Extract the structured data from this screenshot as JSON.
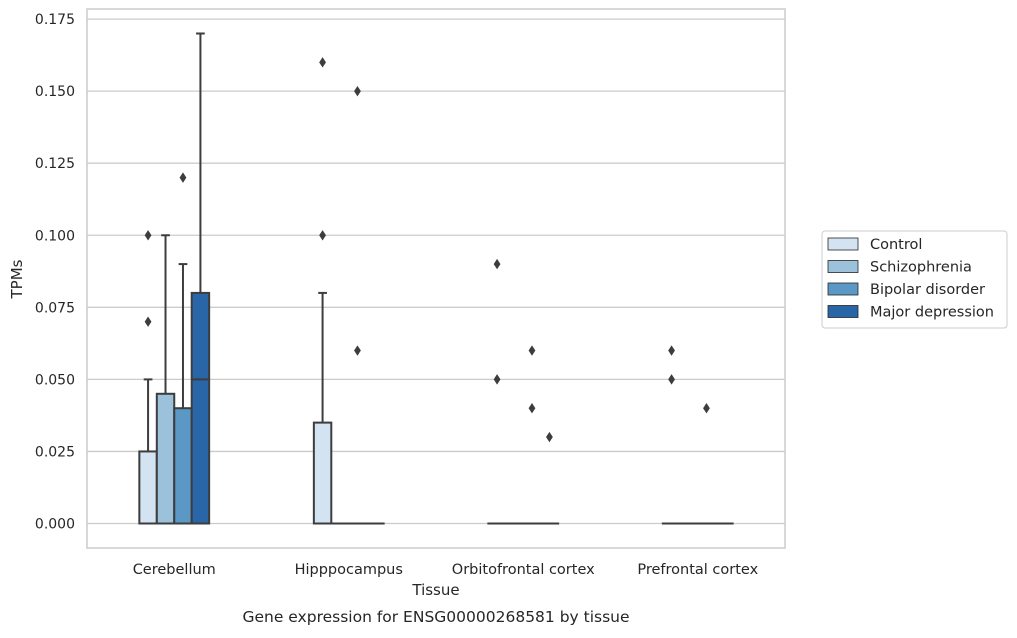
{
  "chart_data": {
    "type": "box",
    "title": "",
    "caption": "Gene expression for ENSG00000268581 by tissue",
    "xlabel": "Tissue",
    "ylabel": "TPMs",
    "ylim": [
      -0.0085,
      0.1785
    ],
    "yticks": [
      0.0,
      0.025,
      0.05,
      0.075,
      0.1,
      0.125,
      0.15,
      0.175
    ],
    "ytick_labels": [
      "0.000",
      "0.025",
      "0.050",
      "0.075",
      "0.100",
      "0.125",
      "0.150",
      "0.175"
    ],
    "categories": [
      "Cerebellum",
      "Hipppocampus",
      "Orbitofrontal cortex",
      "Prefrontal cortex"
    ],
    "grid": true,
    "legend_position": "right",
    "series": [
      {
        "name": "Control",
        "color": "#d4e3f2",
        "boxes": [
          {
            "min": 0.0,
            "q1": 0.0,
            "median": 0.0,
            "q3": 0.025,
            "max": 0.05,
            "outliers": [
              0.07,
              0.1
            ]
          },
          {
            "min": 0.0,
            "q1": 0.0,
            "median": 0.0,
            "q3": 0.035,
            "max": 0.08,
            "outliers": [
              0.1,
              0.16
            ]
          },
          {
            "min": 0.0,
            "q1": 0.0,
            "median": 0.0,
            "q3": 0.0,
            "max": 0.0,
            "outliers": [
              0.05,
              0.09
            ]
          },
          {
            "min": 0.0,
            "q1": 0.0,
            "median": 0.0,
            "q3": 0.0,
            "max": 0.0,
            "outliers": [
              0.05,
              0.06
            ]
          }
        ]
      },
      {
        "name": "Schizophrenia",
        "color": "#9bc1db",
        "boxes": [
          {
            "min": 0.0,
            "q1": 0.0,
            "median": 0.0,
            "q3": 0.045,
            "max": 0.1,
            "outliers": []
          },
          {
            "min": 0.0,
            "q1": 0.0,
            "median": 0.0,
            "q3": 0.0,
            "max": 0.0,
            "outliers": []
          },
          {
            "min": 0.0,
            "q1": 0.0,
            "median": 0.0,
            "q3": 0.0,
            "max": 0.0,
            "outliers": []
          },
          {
            "min": 0.0,
            "q1": 0.0,
            "median": 0.0,
            "q3": 0.0,
            "max": 0.0,
            "outliers": []
          }
        ]
      },
      {
        "name": "Bipolar disorder",
        "color": "#5b98c6",
        "boxes": [
          {
            "min": 0.0,
            "q1": 0.0,
            "median": 0.0,
            "q3": 0.04,
            "max": 0.09,
            "outliers": [
              0.12
            ]
          },
          {
            "min": 0.0,
            "q1": 0.0,
            "median": 0.0,
            "q3": 0.0,
            "max": 0.0,
            "outliers": [
              0.06,
              0.15
            ]
          },
          {
            "min": 0.0,
            "q1": 0.0,
            "median": 0.0,
            "q3": 0.0,
            "max": 0.0,
            "outliers": [
              0.04,
              0.06
            ]
          },
          {
            "min": 0.0,
            "q1": 0.0,
            "median": 0.0,
            "q3": 0.0,
            "max": 0.0,
            "outliers": [
              0.04
            ]
          }
        ]
      },
      {
        "name": "Major depression",
        "color": "#2866a8",
        "boxes": [
          {
            "min": 0.0,
            "q1": 0.0,
            "median": 0.05,
            "q3": 0.08,
            "max": 0.17,
            "outliers": []
          },
          {
            "min": 0.0,
            "q1": 0.0,
            "median": 0.0,
            "q3": 0.0,
            "max": 0.0,
            "outliers": []
          },
          {
            "min": 0.0,
            "q1": 0.0,
            "median": 0.0,
            "q3": 0.0,
            "max": 0.0,
            "outliers": [
              0.03
            ]
          },
          {
            "min": 0.0,
            "q1": 0.0,
            "median": 0.0,
            "q3": 0.0,
            "max": 0.0,
            "outliers": []
          }
        ]
      }
    ]
  }
}
